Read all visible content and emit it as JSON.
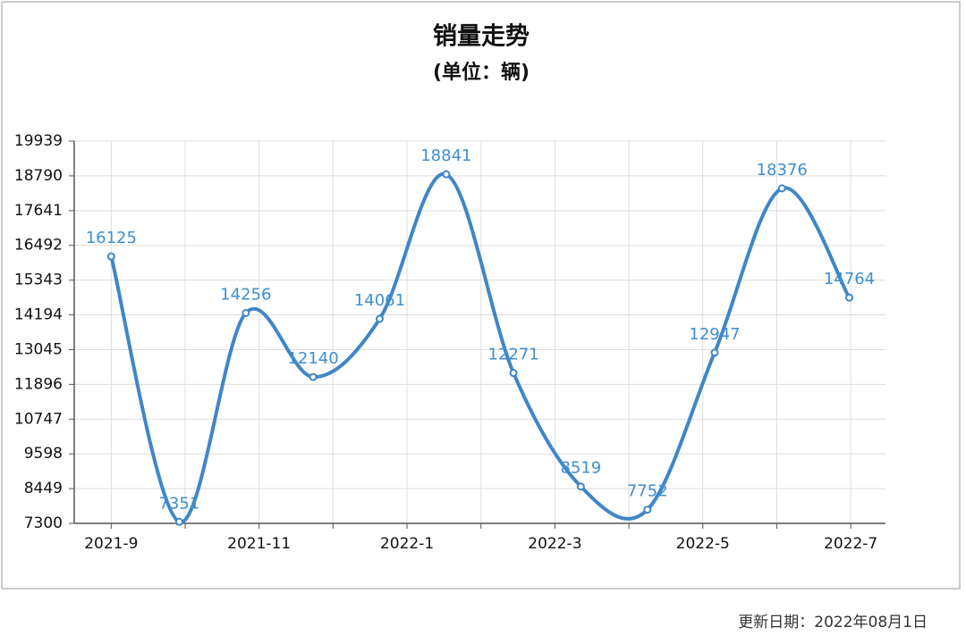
{
  "chart_data": {
    "type": "line",
    "title": "销量走势",
    "subtitle": "(单位：辆)",
    "x": [
      0,
      0.92,
      1.82,
      2.73,
      3.63,
      4.53,
      5.44,
      6.35,
      7.25,
      8.16,
      9.07,
      9.98
    ],
    "values": [
      16125,
      7351,
      14256,
      12140,
      14061,
      18841,
      12271,
      8519,
      7752,
      12947,
      18376,
      14764
    ],
    "color": "#3f86c8",
    "xlim": [
      -0.5,
      10.47
    ],
    "xticks": [
      {
        "value": 0,
        "label": "2021-9"
      },
      {
        "value": 2,
        "label": "2021-11"
      },
      {
        "value": 4,
        "label": "2022-1"
      },
      {
        "value": 6,
        "label": "2022-3"
      },
      {
        "value": 8,
        "label": "2022-5"
      },
      {
        "value": 10,
        "label": "2022-7"
      }
    ],
    "xminorticks": [
      1,
      3,
      5,
      7,
      9
    ],
    "ylim": [
      7300,
      19939
    ],
    "yticks": [
      7300,
      8449,
      9598,
      10747,
      11896,
      13045,
      14194,
      15343,
      16492,
      17641,
      18790,
      19939
    ],
    "grid": true,
    "smooth": true,
    "footnote": "更新日期：2022年08月1日"
  }
}
